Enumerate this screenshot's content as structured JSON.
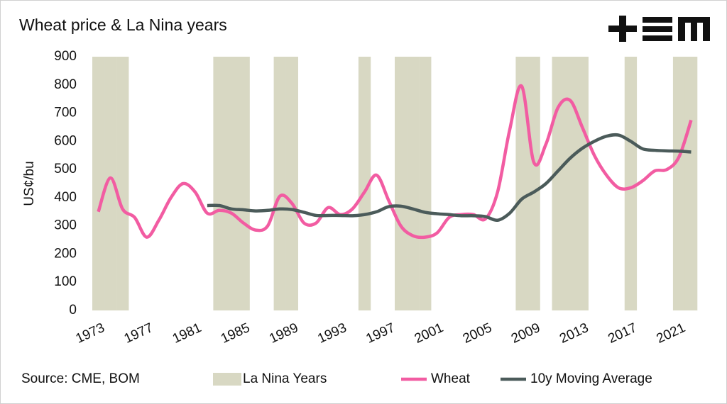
{
  "chart_data": {
    "type": "combo",
    "title": "Wheat price & La Nina years",
    "y_label": "US¢/bu",
    "source": "Source: CME, BOM",
    "categories": [
      "1973",
      null,
      null,
      null,
      "1977",
      null,
      null,
      null,
      "1981",
      null,
      null,
      null,
      "1985",
      null,
      null,
      null,
      "1989",
      null,
      null,
      null,
      "1993",
      null,
      null,
      null,
      "1997",
      null,
      null,
      null,
      "2001",
      null,
      null,
      null,
      "2005",
      null,
      null,
      null,
      "2009",
      null,
      null,
      null,
      "2013",
      null,
      null,
      null,
      "2017",
      null,
      null,
      null,
      "2021",
      null
    ],
    "ylim": [
      0,
      900
    ],
    "yticks": [
      0,
      100,
      200,
      300,
      400,
      500,
      600,
      700,
      800,
      900
    ],
    "grid": false,
    "legend": "bottom",
    "series": [
      {
        "name": "La Nina Years",
        "type": "bar",
        "color": "#d8d8c3",
        "values": [
          900,
          900,
          900,
          null,
          null,
          null,
          null,
          null,
          null,
          null,
          900,
          900,
          900,
          null,
          null,
          900,
          900,
          null,
          null,
          null,
          null,
          null,
          900,
          null,
          null,
          900,
          900,
          900,
          null,
          null,
          null,
          null,
          null,
          null,
          null,
          900,
          900,
          null,
          900,
          900,
          900,
          null,
          null,
          null,
          900,
          null,
          null,
          null,
          900,
          900
        ]
      },
      {
        "name": "Wheat",
        "type": "line",
        "color": "#f25ca2",
        "values": [
          350,
          470,
          360,
          330,
          260,
          320,
          400,
          450,
          420,
          345,
          355,
          345,
          310,
          285,
          300,
          405,
          380,
          310,
          310,
          365,
          340,
          360,
          420,
          480,
          390,
          300,
          265,
          260,
          275,
          330,
          340,
          340,
          325,
          420,
          640,
          795,
          525,
          590,
          720,
          745,
          650,
          550,
          480,
          435,
          435,
          460,
          495,
          500,
          545,
          675
        ]
      },
      {
        "name": "10y Moving Average",
        "type": "line",
        "color": "#4b5b5a",
        "values": [
          null,
          null,
          null,
          null,
          null,
          null,
          null,
          null,
          null,
          372,
          372,
          360,
          357,
          353,
          355,
          360,
          358,
          348,
          337,
          337,
          337,
          336,
          340,
          350,
          368,
          370,
          360,
          348,
          343,
          340,
          336,
          336,
          333,
          320,
          345,
          395,
          420,
          450,
          495,
          540,
          575,
          600,
          618,
          622,
          600,
          573,
          568,
          566,
          565,
          562
        ]
      }
    ]
  }
}
